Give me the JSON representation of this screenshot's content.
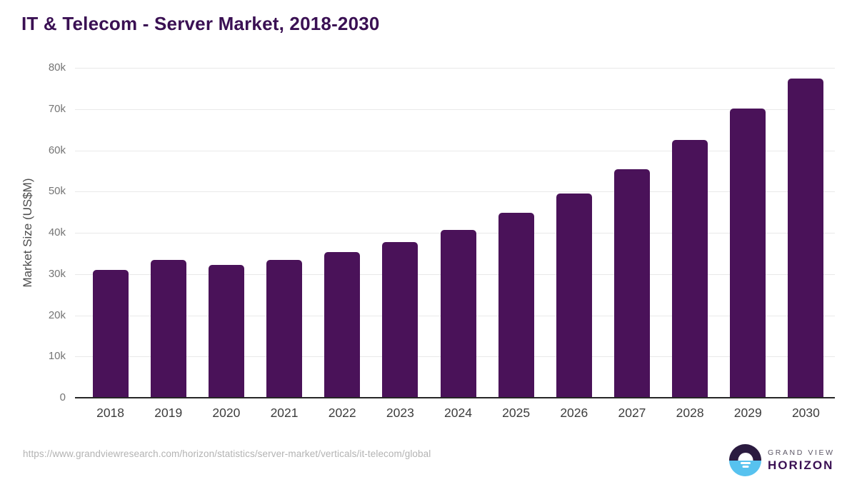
{
  "title": "IT & Telecom - Server Market, 2018-2030",
  "chart_data": {
    "type": "bar",
    "categories": [
      "2018",
      "2019",
      "2020",
      "2021",
      "2022",
      "2023",
      "2024",
      "2025",
      "2026",
      "2027",
      "2028",
      "2029",
      "2030"
    ],
    "values": [
      30800,
      33300,
      32100,
      33300,
      35200,
      37600,
      40600,
      44600,
      49300,
      55300,
      62300,
      69900,
      77200
    ],
    "title": "IT & Telecom - Server Market, 2018-2030",
    "xlabel": "",
    "ylabel": "Market Size (US$M)",
    "ylim": [
      0,
      80000
    ],
    "ytick_step": 10000,
    "ytick_labels": [
      "0",
      "10k",
      "20k",
      "30k",
      "40k",
      "50k",
      "60k",
      "70k",
      "80k"
    ],
    "grid": true,
    "legend": false,
    "bar_color": "#4a1259"
  },
  "footer": {
    "source_url": "https://www.grandviewresearch.com/horizon/statistics/server-market/verticals/it-telecom/global",
    "logo": {
      "line1": "GRAND VIEW",
      "line2": "HORIZON",
      "icon": "horizon-sunrise-icon"
    }
  },
  "colors": {
    "bar": "#4a1259",
    "title_text": "#3a1053",
    "gridline": "#e9e9e9",
    "axis_line": "#262626",
    "y_tick_text": "#757575",
    "x_tick_text": "#3d3d3d",
    "axis_title_text": "#4d4d4d",
    "url_text": "#b3b3b3",
    "logo_dark": "#2b1b40",
    "logo_blue": "#57c2ef"
  }
}
